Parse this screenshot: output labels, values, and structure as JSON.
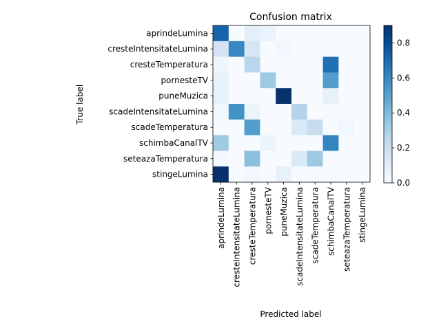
{
  "chart_data": {
    "type": "heatmap",
    "title": "Confusion matrix",
    "xlabel": "Predicted label",
    "ylabel": "True label",
    "x_categories": [
      "aprindeLumina",
      "cresteIntensitateLumina",
      "cresteTemperatura",
      "pornesteTV",
      "puneMuzica",
      "scadeIntensitateLumina",
      "scadeTemperatura",
      "schimbaCanalTV",
      "seteazaTemperatura",
      "stingeLumina"
    ],
    "y_categories": [
      "aprindeLumina",
      "cresteIntensitateLumina",
      "cresteTemperatura",
      "pornesteTV",
      "puneMuzica",
      "scadeIntensitateLumina",
      "scadeTemperatura",
      "schimbaCanalTV",
      "seteazaTemperatura",
      "stingeLumina"
    ],
    "values": [
      [
        0.72,
        0.0,
        0.09,
        0.06,
        0.0,
        0.0,
        0.0,
        0.0,
        0.0,
        0.0
      ],
      [
        0.16,
        0.6,
        0.15,
        0.0,
        0.03,
        0.0,
        0.0,
        0.0,
        0.0,
        0.0
      ],
      [
        0.04,
        0.0,
        0.26,
        0.0,
        0.0,
        0.0,
        0.0,
        0.68,
        0.0,
        0.0
      ],
      [
        0.07,
        0.0,
        0.0,
        0.34,
        0.0,
        0.0,
        0.0,
        0.52,
        0.0,
        0.0
      ],
      [
        0.07,
        0.0,
        0.0,
        0.0,
        0.9,
        0.0,
        0.0,
        0.07,
        0.0,
        0.0
      ],
      [
        0.03,
        0.56,
        0.05,
        0.0,
        0.0,
        0.27,
        0.0,
        0.0,
        0.0,
        0.0
      ],
      [
        0.0,
        0.0,
        0.52,
        0.0,
        0.0,
        0.13,
        0.22,
        0.0,
        0.03,
        0.0
      ],
      [
        0.33,
        0.0,
        0.0,
        0.05,
        0.0,
        0.0,
        0.0,
        0.61,
        0.0,
        0.0
      ],
      [
        0.02,
        0.0,
        0.38,
        0.0,
        0.0,
        0.13,
        0.34,
        0.0,
        0.0,
        0.0
      ],
      [
        0.9,
        0.0,
        0.03,
        0.0,
        0.07,
        0.0,
        0.0,
        0.0,
        0.0,
        0.0
      ]
    ],
    "colormap": "Blues",
    "vmin": 0.0,
    "vmax": 0.9,
    "colorbar_ticks": [
      "0.0",
      "0.2",
      "0.4",
      "0.6",
      "0.8"
    ],
    "grid": false,
    "legend": "colorbar-right"
  }
}
